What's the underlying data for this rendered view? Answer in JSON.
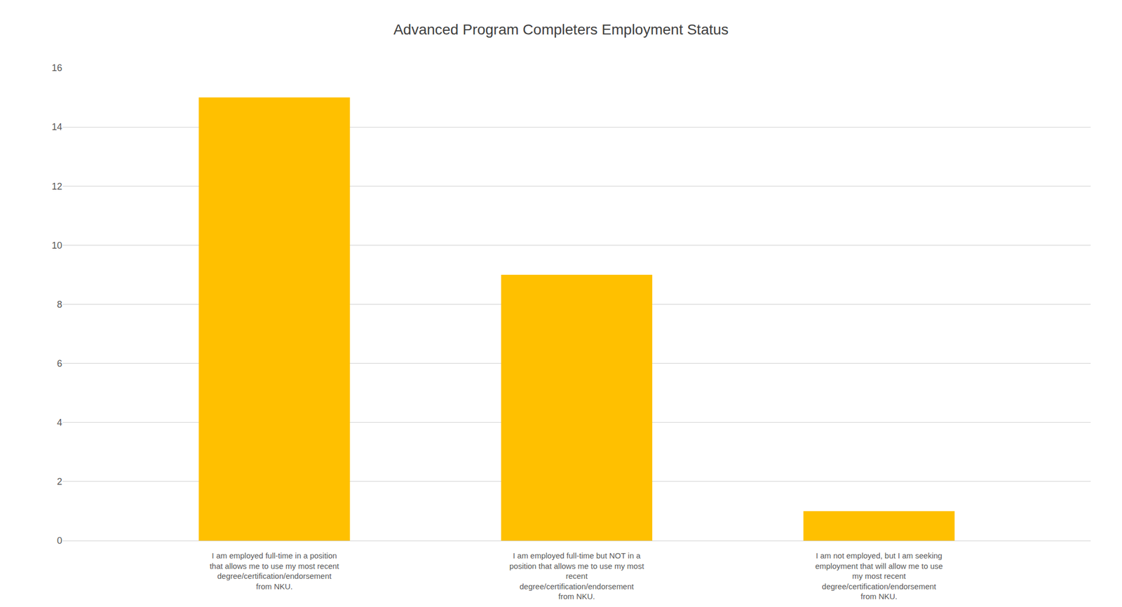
{
  "chart_data": {
    "type": "bar",
    "title": "Advanced Program Completers Employment Status",
    "categories": [
      "I am employed full-time in a position\nthat allows me to use my most recent\ndegree/certification/endorsement\nfrom NKU.",
      "I am employed full-time but NOT in a\nposition that allows me to use my most\nrecent\ndegree/certification/endorsement\nfrom NKU.",
      "I am not employed, but I am seeking\nemployment that will allow me to use\nmy most recent\ndegree/certification/endorsement\nfrom NKU."
    ],
    "values": [
      15,
      9,
      1
    ],
    "color": "#FFC000",
    "ylim": [
      0,
      16
    ],
    "yticks": [
      0,
      2,
      4,
      6,
      8,
      10,
      12,
      14,
      16
    ],
    "grid": true
  }
}
